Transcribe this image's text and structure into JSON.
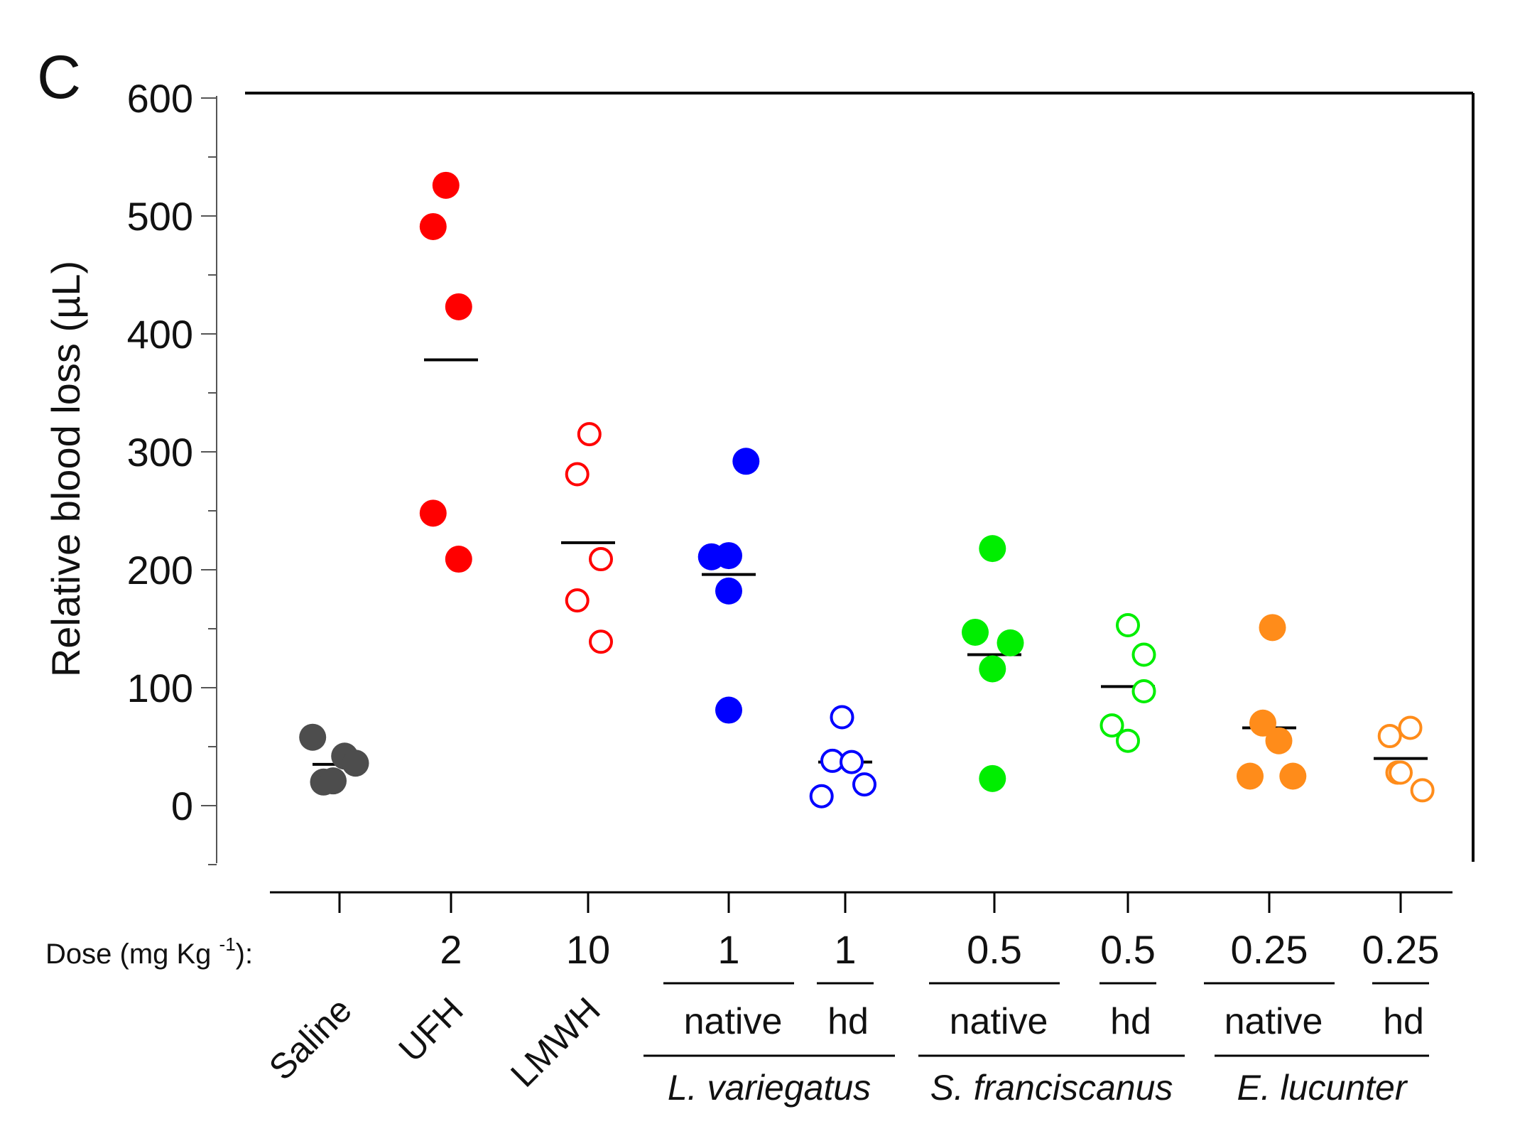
{
  "chart_data": {
    "type": "scatter",
    "panel_letter": "C",
    "ylabel": "Relative blood loss (µL)",
    "ylim": [
      -50,
      600
    ],
    "yticks": [
      0,
      100,
      200,
      300,
      400,
      500,
      600
    ],
    "ytick_labels": [
      "0",
      "100",
      "200",
      "300",
      "400",
      "500",
      "600"
    ],
    "dose_prefix": "Dose (mg Kg ",
    "dose_exponent": "-1",
    "dose_suffix": "):",
    "groups": [
      {
        "label": "Saline",
        "dose": "",
        "form": "",
        "species": "",
        "color": "#4d4d4d",
        "filled": true,
        "mean": 35,
        "points": [
          {
            "x": -0.42,
            "y": 58
          },
          {
            "x": -0.25,
            "y": 20
          },
          {
            "x": -0.1,
            "y": 21
          },
          {
            "x": 0.08,
            "y": 42
          },
          {
            "x": 0.25,
            "y": 36
          }
        ]
      },
      {
        "label": "UFH",
        "dose": "2",
        "form": "",
        "species": "",
        "color": "#ff0000",
        "filled": true,
        "mean": 378,
        "points": [
          {
            "x": -0.28,
            "y": 491
          },
          {
            "x": -0.08,
            "y": 526
          },
          {
            "x": 0.12,
            "y": 423
          },
          {
            "x": -0.28,
            "y": 248
          },
          {
            "x": 0.12,
            "y": 209
          }
        ]
      },
      {
        "label": "LMWH",
        "dose": "10",
        "form": "",
        "species": "",
        "color": "#ff0000",
        "filled": false,
        "mean": 223,
        "points": [
          {
            "x": -0.17,
            "y": 281
          },
          {
            "x": 0.02,
            "y": 315
          },
          {
            "x": 0.2,
            "y": 209
          },
          {
            "x": -0.17,
            "y": 174
          },
          {
            "x": 0.2,
            "y": 139
          }
        ]
      },
      {
        "label": "",
        "dose": "1",
        "form": "native",
        "species": "L. variegatus",
        "color": "#0000ff",
        "filled": true,
        "mean": 196,
        "points": [
          {
            "x": 0.27,
            "y": 292
          },
          {
            "x": -0.27,
            "y": 211
          },
          {
            "x": 0.0,
            "y": 212
          },
          {
            "x": 0.0,
            "y": 182
          },
          {
            "x": 0.0,
            "y": 81
          }
        ]
      },
      {
        "label": "",
        "dose": "1",
        "form": "hd",
        "species": "L. variegatus",
        "color": "#0000ff",
        "filled": false,
        "mean": 37,
        "points": [
          {
            "x": -0.05,
            "y": 75
          },
          {
            "x": -0.2,
            "y": 38
          },
          {
            "x": 0.1,
            "y": 37
          },
          {
            "x": 0.3,
            "y": 18
          },
          {
            "x": -0.37,
            "y": 8
          }
        ]
      },
      {
        "label": "",
        "dose": "0.5",
        "form": "native",
        "species": "S. franciscanus",
        "color": "#00ee00",
        "filled": true,
        "mean": 128,
        "points": [
          {
            "x": -0.03,
            "y": 218
          },
          {
            "x": -0.3,
            "y": 147
          },
          {
            "x": 0.25,
            "y": 138
          },
          {
            "x": -0.03,
            "y": 116
          },
          {
            "x": -0.03,
            "y": 23
          }
        ]
      },
      {
        "label": "",
        "dose": "0.5",
        "form": "hd",
        "species": "S. franciscanus",
        "color": "#00ee00",
        "filled": false,
        "mean": 101,
        "points": [
          {
            "x": 0.0,
            "y": 153
          },
          {
            "x": 0.25,
            "y": 128
          },
          {
            "x": 0.25,
            "y": 97
          },
          {
            "x": -0.25,
            "y": 68
          },
          {
            "x": 0.0,
            "y": 55
          }
        ]
      },
      {
        "label": "",
        "dose": "0.25",
        "form": "native",
        "species": "E. lucunter",
        "color": "#ff8c1a",
        "filled": true,
        "mean": 66,
        "points": [
          {
            "x": 0.05,
            "y": 151
          },
          {
            "x": -0.1,
            "y": 70
          },
          {
            "x": 0.15,
            "y": 55
          },
          {
            "x": -0.3,
            "y": 25
          },
          {
            "x": 0.37,
            "y": 25
          }
        ]
      },
      {
        "label": "",
        "dose": "0.25",
        "form": "hd",
        "species": "E. lucunter",
        "color": "#ff8c1a",
        "filled": false,
        "mean": 40,
        "points": [
          {
            "x": -0.17,
            "y": 59
          },
          {
            "x": 0.15,
            "y": 66
          },
          {
            "x": -0.05,
            "y": 28
          },
          {
            "x": 0.0,
            "y": 28
          },
          {
            "x": 0.34,
            "y": 13
          }
        ]
      }
    ],
    "species_groups": [
      "L. variegatus",
      "S. franciscanus",
      "E. lucunter"
    ]
  }
}
